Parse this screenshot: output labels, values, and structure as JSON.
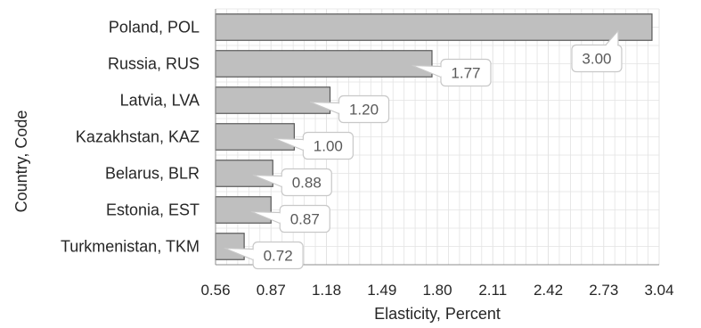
{
  "chart_data": {
    "type": "bar",
    "orientation": "horizontal",
    "categories": [
      "Poland, POL",
      "Russia, RUS",
      "Latvia, LVA",
      "Kazakhstan, KAZ",
      "Belarus, BLR",
      "Estonia, EST",
      "Turkmenistan, TKM"
    ],
    "values": [
      3.0,
      1.77,
      1.2,
      1.0,
      0.88,
      0.87,
      0.72
    ],
    "data_labels": [
      "3.00",
      "1.77",
      "1.20",
      "1.00",
      "0.88",
      "0.87",
      "0.72"
    ],
    "xlabel": "Elasticity, Percent",
    "ylabel": "Country, Code",
    "xlim": [
      0.56,
      3.04
    ],
    "xticks": [
      "0.56",
      "0.87",
      "1.18",
      "1.49",
      "1.80",
      "2.11",
      "2.42",
      "2.73",
      "3.04"
    ],
    "grid": true,
    "legend": "none",
    "colors": {
      "bar_fill": "#bfbfbf",
      "bar_stroke": "#595959",
      "grid": "#e3e3e3",
      "label_border": "#c8c8c8",
      "text": "#262626",
      "label_text": "#595959"
    }
  }
}
